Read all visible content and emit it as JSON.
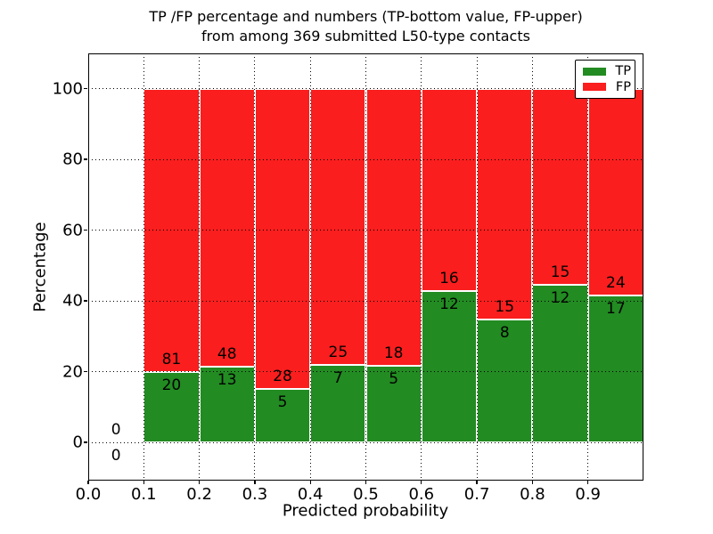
{
  "chart_data": {
    "type": "bar",
    "stacked": true,
    "percent_normalized": true,
    "title_lines": [
      "TP /FP percentage and numbers (TP-bottom value, FP-upper)",
      "from among 369 submitted L50-type contacts"
    ],
    "total_contacts": 369,
    "xlabel": "Predicted probability",
    "ylabel": "Percentage",
    "xlim": [
      0.0,
      1.0
    ],
    "ylim": [
      -10.5,
      110
    ],
    "grid": "dotted black, on top of bars",
    "legend_position": "upper right",
    "xticks": [
      0.0,
      0.1,
      0.2,
      0.3,
      0.4,
      0.5,
      0.6,
      0.7,
      0.8,
      0.9
    ],
    "xtick_labels": [
      "0.0",
      "0.1",
      "0.2",
      "0.3",
      "0.4",
      "0.5",
      "0.6",
      "0.7",
      "0.8",
      "0.9"
    ],
    "yticks": [
      0,
      20,
      40,
      60,
      80,
      100
    ],
    "series": [
      {
        "name": "TP",
        "color": "#228b22"
      },
      {
        "name": "FP",
        "color": "#fa1e1e"
      }
    ],
    "colors": {
      "background": "#ffffff",
      "bar_edge": "#ffffff",
      "grid": "#000000",
      "text": "#000000"
    },
    "bins": [
      {
        "x0": 0.0,
        "x1": 0.1,
        "tp": 0,
        "fp": 0,
        "tp_pct": 0,
        "fp_pct": 0,
        "has_bar": false
      },
      {
        "x0": 0.1,
        "x1": 0.2,
        "tp": 20,
        "fp": 81,
        "tp_pct": 19.8,
        "fp_pct": 80.2,
        "has_bar": true
      },
      {
        "x0": 0.2,
        "x1": 0.3,
        "tp": 13,
        "fp": 48,
        "tp_pct": 21.31,
        "fp_pct": 78.69,
        "has_bar": true
      },
      {
        "x0": 0.3,
        "x1": 0.4,
        "tp": 5,
        "fp": 28,
        "tp_pct": 15.15,
        "fp_pct": 84.85,
        "has_bar": true
      },
      {
        "x0": 0.4,
        "x1": 0.5,
        "tp": 7,
        "fp": 25,
        "tp_pct": 21.88,
        "fp_pct": 78.12,
        "has_bar": true
      },
      {
        "x0": 0.5,
        "x1": 0.6,
        "tp": 5,
        "fp": 18,
        "tp_pct": 21.74,
        "fp_pct": 78.26,
        "has_bar": true
      },
      {
        "x0": 0.6,
        "x1": 0.7,
        "tp": 12,
        "fp": 16,
        "tp_pct": 42.86,
        "fp_pct": 57.14,
        "has_bar": true
      },
      {
        "x0": 0.7,
        "x1": 0.8,
        "tp": 8,
        "fp": 15,
        "tp_pct": 34.78,
        "fp_pct": 65.22,
        "has_bar": true
      },
      {
        "x0": 0.8,
        "x1": 0.9,
        "tp": 12,
        "fp": 15,
        "tp_pct": 44.44,
        "fp_pct": 55.56,
        "has_bar": true
      },
      {
        "x0": 0.9,
        "x1": 1.0,
        "tp": 17,
        "fp": 24,
        "tp_pct": 41.46,
        "fp_pct": 58.54,
        "has_bar": true
      }
    ]
  }
}
